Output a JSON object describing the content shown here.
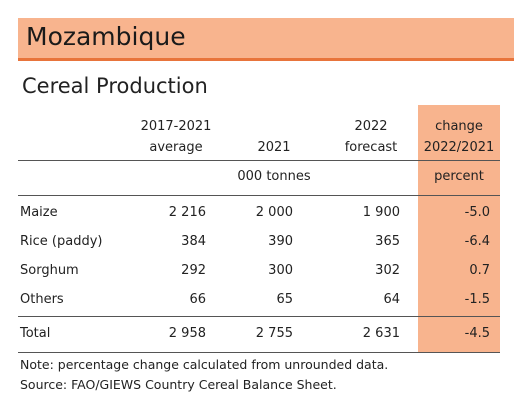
{
  "header": {
    "title": "Mozambique",
    "subtitle": "Cereal Production"
  },
  "table": {
    "columns": [
      [
        "2017-2021",
        "average"
      ],
      [
        "2021"
      ],
      [
        "2022",
        "forecast"
      ],
      [
        "change",
        "2022/2021"
      ]
    ],
    "units": [
      "000 tonnes",
      "percent"
    ],
    "rows": [
      [
        "Maize",
        "2 216",
        "2 000",
        "1 900",
        "-5.0"
      ],
      [
        "Rice (paddy)",
        "384",
        "390",
        "365",
        "-6.4"
      ],
      [
        "Sorghum",
        "292",
        "300",
        "302",
        "0.7"
      ],
      [
        "Others",
        "66",
        "65",
        "64",
        "-1.5"
      ]
    ],
    "total": [
      "Total",
      "2 958",
      "2 755",
      "2 631",
      "-4.5"
    ]
  },
  "notes": [
    "Note: percentage change calculated from unrounded data.",
    "Source: FAO/GIEWS Country Cereal Balance Sheet."
  ]
}
